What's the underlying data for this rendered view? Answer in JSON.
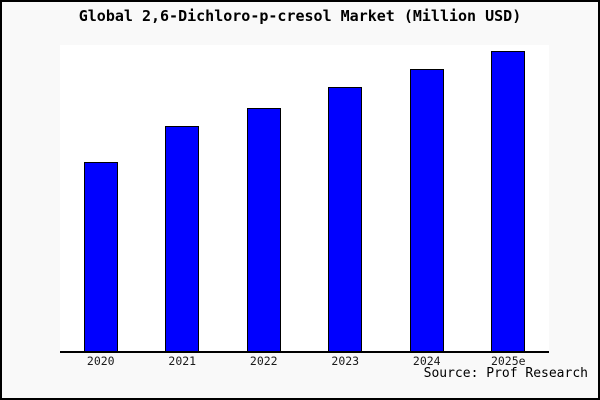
{
  "window": {
    "background": "#f9f9f9",
    "plot_background": "#ffffff",
    "border_color": "#000000"
  },
  "header": {
    "title": "Global 2,6-Dichloro-p-cresol Market (Million USD)"
  },
  "footer": {
    "source": "Source: Prof Research"
  },
  "chart_data": {
    "type": "bar",
    "title": "Global 2,6-Dichloro-p-cresol Market (Million USD)",
    "categories": [
      "2020",
      "2021",
      "2022",
      "2023",
      "2024",
      "2025e"
    ],
    "values": [
      63,
      75,
      81,
      88,
      94,
      100
    ],
    "values_note": "No y-axis or data labels shown; values estimated from bar heights, normalized so 2025e = 100",
    "xlabel": "",
    "ylabel": "",
    "ylim": [
      0,
      102
    ],
    "grid": false,
    "legend": "none",
    "bar_color": "#0000ff",
    "bar_edge_color": "#000000",
    "axis_line_color": "#000000",
    "source": "Source: Prof Research"
  }
}
